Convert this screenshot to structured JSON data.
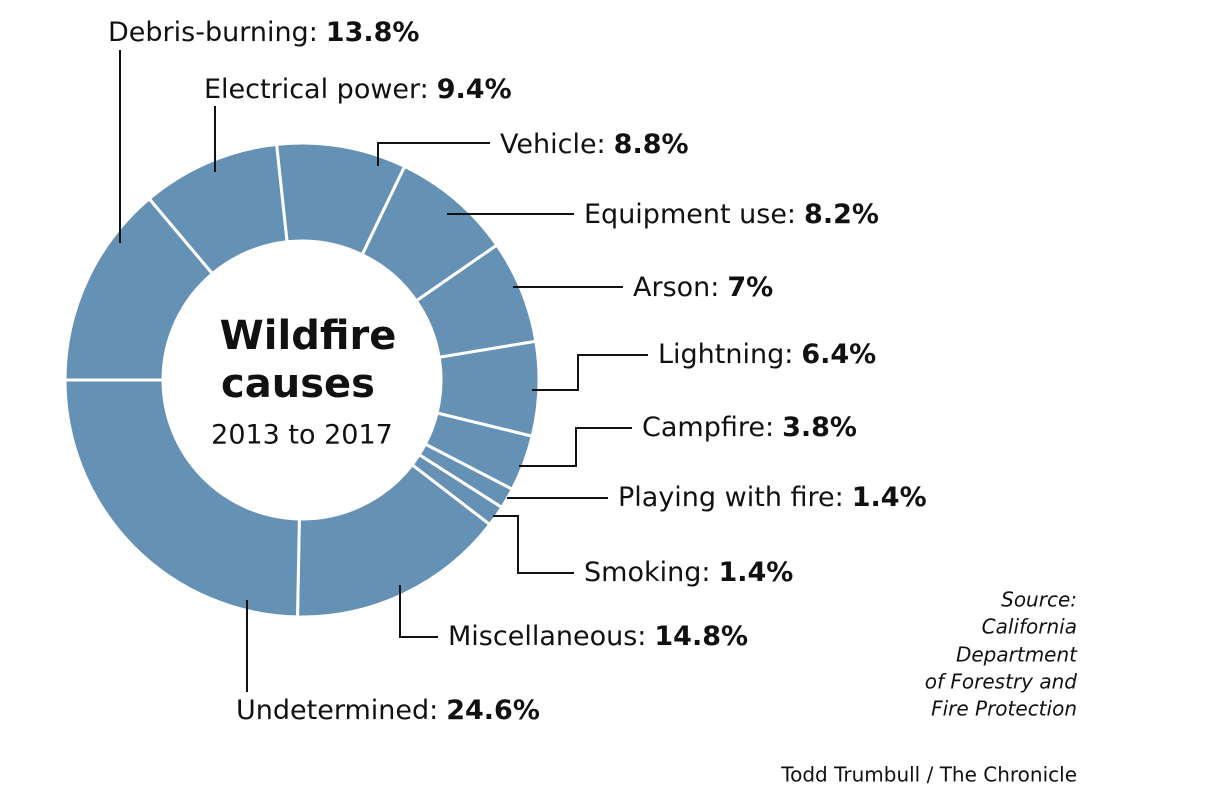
{
  "chart_data": {
    "type": "donut",
    "title": [
      "Wildfire",
      "causes"
    ],
    "subtitle": "2013 to 2017",
    "categories": [
      "Debris-burning:",
      "Electrical power:",
      "Vehicle:",
      "Equipment use:",
      "Arson:",
      "Lightning:",
      "Campfire:",
      "Playing with fire:",
      "Smoking:",
      "Miscellaneous:",
      "Undetermined:"
    ],
    "values": [
      13.8,
      9.4,
      8.8,
      8.2,
      7,
      6.4,
      3.8,
      1.4,
      1.4,
      14.8,
      24.6
    ],
    "value_labels": [
      "13.8%",
      "9.4%",
      "8.8%",
      "8.2%",
      "7%",
      "6.4%",
      "3.8%",
      "1.4%",
      "1.4%",
      "14.8%",
      "24.6%"
    ],
    "color": "#6591b5",
    "source": [
      "Source:",
      "California",
      "Department",
      "of Forestry and",
      "Fire Protection"
    ],
    "credit": "Todd Trumbull / The Chronicle"
  }
}
